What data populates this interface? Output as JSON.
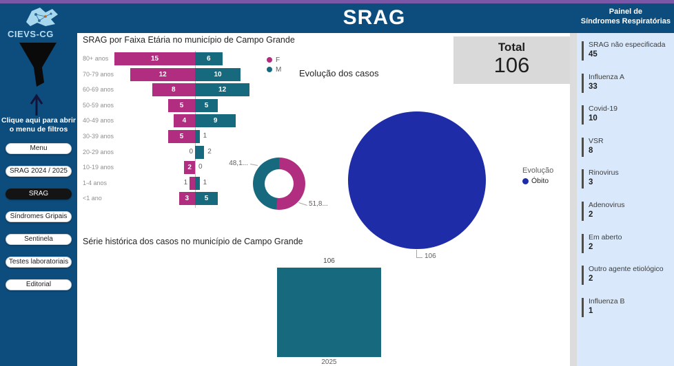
{
  "header": {
    "title": "SRAG",
    "right_line1": "Painel de",
    "right_line2": "Síndromes Respiratórias"
  },
  "sidebar": {
    "logo_text": "CIEVS-CG",
    "filter_hint_line1": "Clique aqui para abrir",
    "filter_hint_line2": "o menu de filtros",
    "buttons": [
      {
        "label": "Menu",
        "selected": false
      },
      {
        "label": "SRAG 2024 / 2025",
        "selected": false
      },
      {
        "label": "SRAG",
        "selected": true
      },
      {
        "label": "Síndromes Gripais",
        "selected": false
      },
      {
        "label": "Sentinela",
        "selected": false
      },
      {
        "label": "Testes laboratoriais",
        "selected": false
      },
      {
        "label": "Editorial",
        "selected": false
      }
    ]
  },
  "total_card": {
    "label": "Total",
    "value": "106"
  },
  "chart_data": [
    {
      "type": "bar",
      "variant": "tornado",
      "title": "SRAG por Faixa Etária no município de Campo Grande",
      "categories": [
        "80+ anos",
        "70-79 anos",
        "60-69 anos",
        "50-59 anos",
        "40-49 anos",
        "30-39 anos",
        "20-29 anos",
        "10-19 anos",
        "1-4 anos",
        "<1 ano"
      ],
      "series": [
        {
          "name": "F",
          "color": "#b12d80",
          "values": [
            15,
            12,
            8,
            5,
            4,
            5,
            0,
            2,
            1,
            3
          ]
        },
        {
          "name": "M",
          "color": "#176a7e",
          "values": [
            6,
            10,
            12,
            5,
            9,
            1,
            2,
            0,
            1,
            5
          ]
        }
      ],
      "legend_position": "right"
    },
    {
      "type": "pie",
      "variant": "donut",
      "title": "",
      "slices": [
        {
          "label": "F",
          "value": 55,
          "pct": 51.85,
          "display": "51,8...",
          "color": "#b12d80"
        },
        {
          "label": "M",
          "value": 51,
          "pct": 48.15,
          "display": "48,1...",
          "color": "#176a7e"
        }
      ]
    },
    {
      "type": "pie",
      "title": "Evolução dos casos",
      "legend_title": "Evolução",
      "slices": [
        {
          "label": "Óbito",
          "value": 106,
          "display": "106",
          "color": "#1f2ca8"
        }
      ],
      "legend_position": "right"
    },
    {
      "type": "bar",
      "title": "Série histórica dos casos no município de Campo Grande",
      "categories": [
        "2025"
      ],
      "values": [
        106
      ],
      "color": "#176a7e"
    }
  ],
  "pathogens": {
    "items": [
      {
        "label": "SRAG não especificada",
        "value": "45"
      },
      {
        "label": "Influenza A",
        "value": "33"
      },
      {
        "label": "Covid-19",
        "value": "10"
      },
      {
        "label": "VSR",
        "value": "8"
      },
      {
        "label": "Rinovirus",
        "value": "3"
      },
      {
        "label": "Adenovirus",
        "value": "2"
      },
      {
        "label": "Em aberto",
        "value": "2"
      },
      {
        "label": "Outro agente etiológico",
        "value": "2"
      },
      {
        "label": "Influenza B",
        "value": "1"
      }
    ]
  },
  "colors": {
    "accent_purple": "#7a57a7",
    "header_blue": "#0d4d7d",
    "female": "#b12d80",
    "male": "#176a7e",
    "pie_blue": "#1f2ca8",
    "panel_bg": "#d9e9fb",
    "card_bg": "#d9d9d9"
  }
}
